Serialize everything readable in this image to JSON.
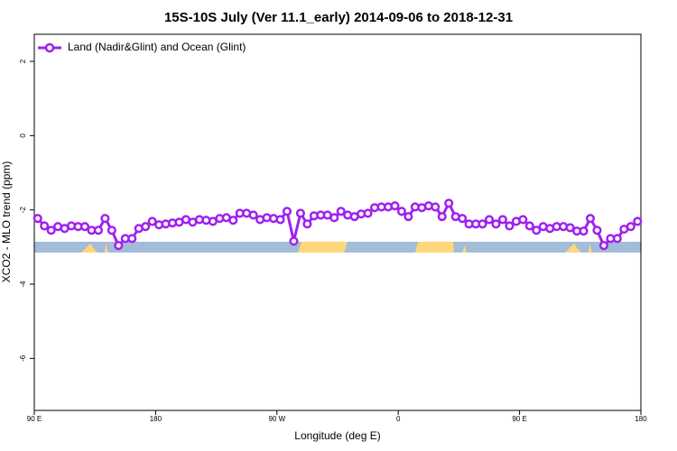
{
  "chart_data": {
    "type": "line",
    "title": "15S-10S July (Ver 11.1_early)   2014-09-06 to 2018-12-31",
    "x_label": "Longitude (deg E)",
    "y_label": "XCO2 - MLO trend (ppm)",
    "xlim": [
      90,
      540
    ],
    "ylim": [
      -7.4,
      2.73
    ],
    "xticks": [
      {
        "value": 90,
        "label": "90 E"
      },
      180,
      {
        "value": 270,
        "label": "90 W"
      },
      {
        "value": 360,
        "label": "0"
      },
      {
        "value": 450,
        "label": "90 E"
      },
      {
        "value": 540,
        "label": "180"
      }
    ],
    "yticks": [
      2,
      0,
      -2,
      -4,
      -6
    ],
    "legend": "top-left",
    "series": [
      {
        "name": "Land (Nadir&Glint) and Ocean (Glint)",
        "color": "#a020f0",
        "x": [
          92.5,
          97.5,
          102.5,
          107.5,
          112.5,
          117.5,
          122.5,
          127.5,
          132.5,
          137.5,
          142.5,
          147.5,
          152.5,
          157.5,
          162.5,
          167.5,
          172.5,
          177.5,
          182.5,
          187.5,
          192.5,
          197.5,
          202.5,
          207.5,
          212.5,
          217.5,
          222.5,
          227.5,
          232.5,
          237.5,
          242.5,
          247.5,
          252.5,
          257.5,
          262.5,
          267.5,
          272.5,
          277.5,
          282.5,
          287.5,
          292.5,
          297.5,
          302.5,
          307.5,
          312.5,
          317.5,
          322.5,
          327.5,
          332.5,
          337.5,
          342.5,
          347.5,
          352.5,
          357.5,
          362.5,
          367.5,
          372.5,
          377.5,
          382.5,
          387.5,
          392.5,
          397.5,
          402.5,
          407.5,
          412.5,
          417.5,
          422.5,
          427.5,
          432.5,
          437.5,
          442.5,
          447.5,
          452.5,
          457.5,
          462.5,
          467.5,
          472.5,
          477.5,
          482.5,
          487.5,
          492.5,
          497.5,
          502.5,
          507.5,
          512.5,
          517.5,
          522.5,
          527.5,
          532.5,
          537.5
        ],
        "values": [
          -2.23,
          -2.43,
          -2.55,
          -2.45,
          -2.5,
          -2.43,
          -2.45,
          -2.45,
          -2.55,
          -2.55,
          -2.23,
          -2.55,
          -2.96,
          -2.77,
          -2.77,
          -2.5,
          -2.45,
          -2.31,
          -2.4,
          -2.38,
          -2.35,
          -2.33,
          -2.26,
          -2.33,
          -2.26,
          -2.28,
          -2.31,
          -2.23,
          -2.21,
          -2.28,
          -2.09,
          -2.09,
          -2.14,
          -2.26,
          -2.21,
          -2.23,
          -2.26,
          -2.04,
          -2.84,
          -2.09,
          -2.38,
          -2.16,
          -2.14,
          -2.14,
          -2.21,
          -2.04,
          -2.14,
          -2.18,
          -2.11,
          -2.09,
          -1.94,
          -1.92,
          -1.92,
          -1.89,
          -2.04,
          -2.18,
          -1.92,
          -1.94,
          -1.89,
          -1.92,
          -2.18,
          -1.82,
          -2.18,
          -2.23,
          -2.38,
          -2.38,
          -2.38,
          -2.26,
          -2.38,
          -2.26,
          -2.43,
          -2.31,
          -2.26,
          -2.43,
          -2.55,
          -2.45,
          -2.5,
          -2.45,
          -2.45,
          -2.48,
          -2.57,
          -2.57,
          -2.23,
          -2.55,
          -2.96,
          -2.77,
          -2.77,
          -2.52,
          -2.45,
          -2.31
        ]
      }
    ]
  }
}
